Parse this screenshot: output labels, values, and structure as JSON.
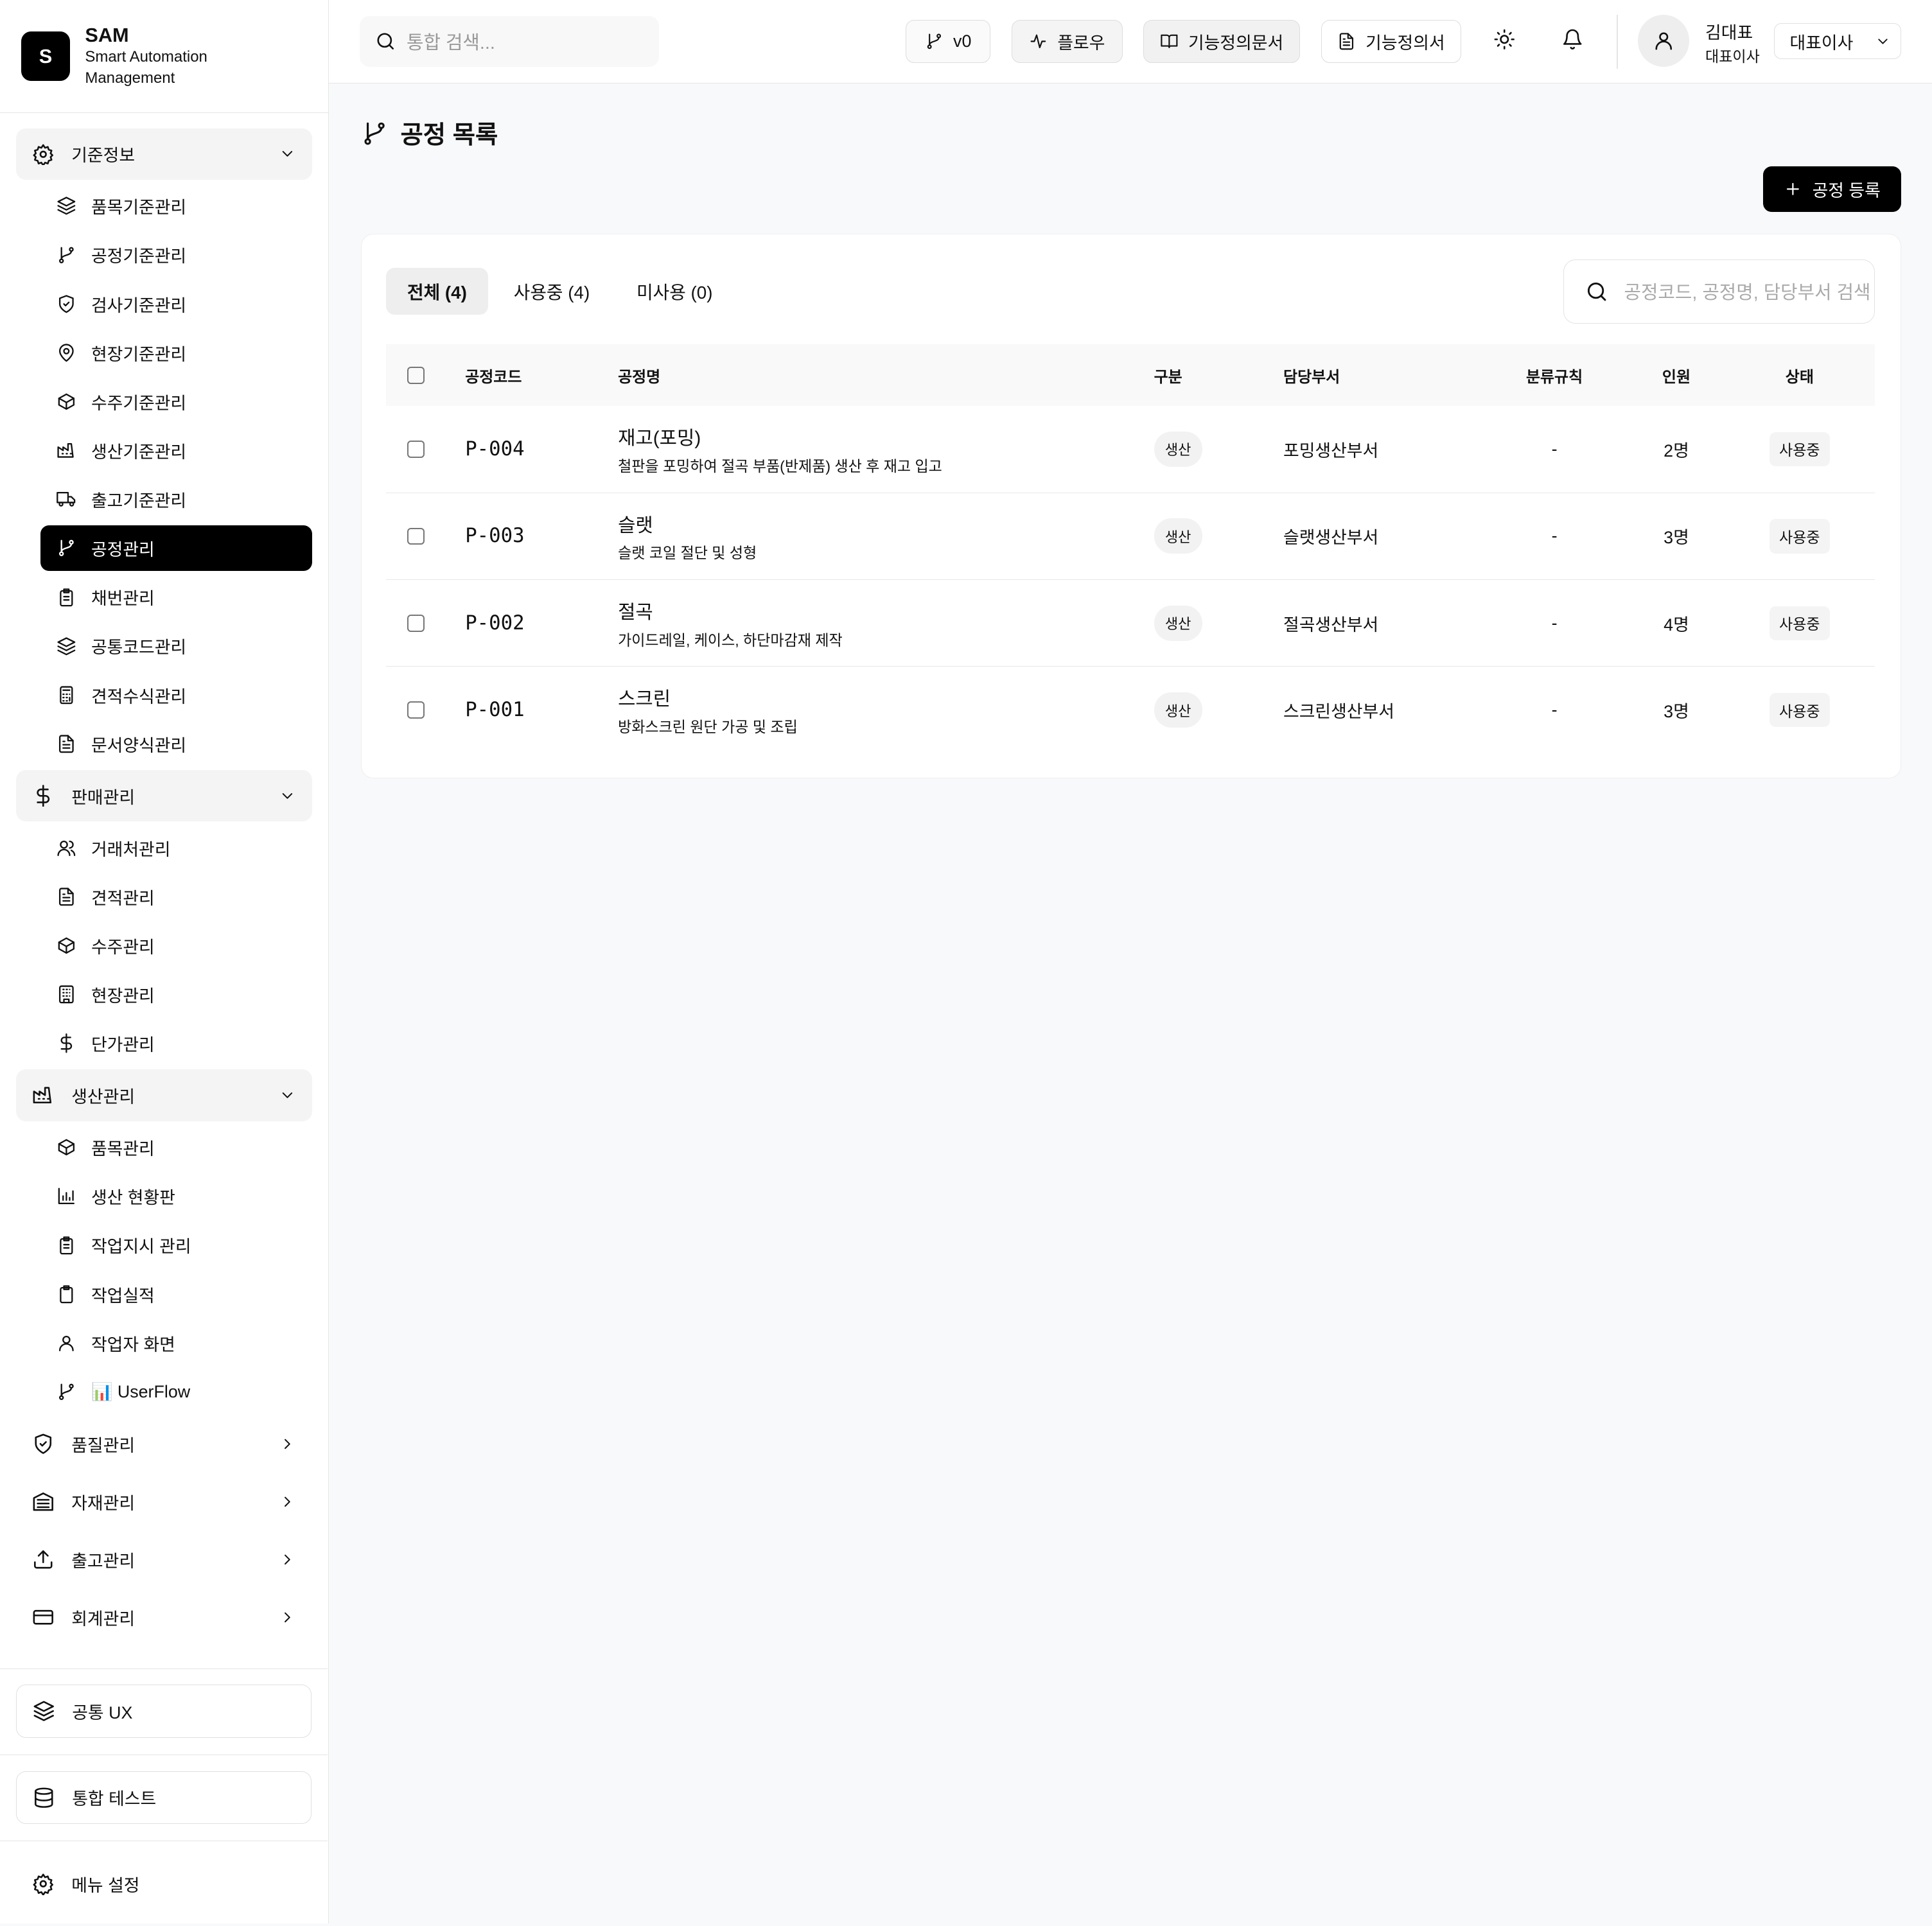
{
  "brand": {
    "logo": "S",
    "title": "SAM",
    "subtitle": "Smart Automation Management"
  },
  "sidebar": {
    "groups": [
      {
        "label": "기준정보",
        "icon": "gear",
        "open": true,
        "items": [
          {
            "label": "품목기준관리",
            "icon": "layers"
          },
          {
            "label": "공정기준관리",
            "icon": "branch"
          },
          {
            "label": "검사기준관리",
            "icon": "shield"
          },
          {
            "label": "현장기준관리",
            "icon": "pin"
          },
          {
            "label": "수주기준관리",
            "icon": "box"
          },
          {
            "label": "생산기준관리",
            "icon": "factory"
          },
          {
            "label": "출고기준관리",
            "icon": "truck"
          },
          {
            "label": "공정관리",
            "icon": "branch",
            "active": true
          },
          {
            "label": "채번관리",
            "icon": "clipboard"
          },
          {
            "label": "공통코드관리",
            "icon": "layers"
          },
          {
            "label": "견적수식관리",
            "icon": "calc"
          },
          {
            "label": "문서양식관리",
            "icon": "file"
          }
        ]
      },
      {
        "label": "판매관리",
        "icon": "dollar",
        "open": true,
        "items": [
          {
            "label": "거래처관리",
            "icon": "users"
          },
          {
            "label": "견적관리",
            "icon": "file"
          },
          {
            "label": "수주관리",
            "icon": "box"
          },
          {
            "label": "현장관리",
            "icon": "building"
          },
          {
            "label": "단가관리",
            "icon": "dollar"
          }
        ]
      },
      {
        "label": "생산관리",
        "icon": "factory",
        "open": true,
        "items": [
          {
            "label": "품목관리",
            "icon": "box"
          },
          {
            "label": "생산 현황판",
            "icon": "chart"
          },
          {
            "label": "작업지시 관리",
            "icon": "clipboard"
          },
          {
            "label": "작업실적",
            "icon": "clip"
          },
          {
            "label": "작업자 화면",
            "icon": "user"
          },
          {
            "label": "📊 UserFlow",
            "icon": "branch"
          }
        ]
      },
      {
        "label": "품질관리",
        "icon": "shield",
        "open": false,
        "items": []
      },
      {
        "label": "자재관리",
        "icon": "warehouse",
        "open": false,
        "items": []
      },
      {
        "label": "출고관리",
        "icon": "upload",
        "open": false,
        "items": []
      },
      {
        "label": "회계관리",
        "icon": "card",
        "open": false,
        "items": []
      }
    ],
    "footer": {
      "common_ux": "공통 UX",
      "integration_test": "통합 테스트",
      "menu_settings": "메뉴 설정"
    }
  },
  "header": {
    "search_placeholder": "통합 검색...",
    "buttons": [
      {
        "label": "v0",
        "icon": "branch"
      },
      {
        "label": "플로우",
        "icon": "activity"
      },
      {
        "label": "기능정의문서",
        "icon": "book"
      },
      {
        "label": "기능정의서",
        "icon": "file"
      }
    ],
    "user": {
      "name": "김대표",
      "role": "대표이사"
    },
    "role_select": "대표이사"
  },
  "page": {
    "title": "공정 목록",
    "add_button": "공정 등록",
    "tabs": [
      {
        "label": "전체 (4)",
        "active": true
      },
      {
        "label": "사용중 (4)"
      },
      {
        "label": "미사용 (0)"
      }
    ],
    "search_placeholder": "공정코드, 공정명, 담당부서 검색",
    "columns": [
      "공정코드",
      "공정명",
      "구분",
      "담당부서",
      "분류규칙",
      "인원",
      "상태"
    ],
    "rows": [
      {
        "code": "P-004",
        "name": "재고(포밍)",
        "desc": "철판을 포밍하여 절곡 부품(반제품) 생산 후 재고 입고",
        "type": "생산",
        "dept": "포밍생산부서",
        "rule": "-",
        "staff": "2명",
        "status": "사용중"
      },
      {
        "code": "P-003",
        "name": "슬랫",
        "desc": "슬랫 코일 절단 및 성형",
        "type": "생산",
        "dept": "슬랫생산부서",
        "rule": "-",
        "staff": "3명",
        "status": "사용중"
      },
      {
        "code": "P-002",
        "name": "절곡",
        "desc": "가이드레일, 케이스, 하단마감재 제작",
        "type": "생산",
        "dept": "절곡생산부서",
        "rule": "-",
        "staff": "4명",
        "status": "사용중"
      },
      {
        "code": "P-001",
        "name": "스크린",
        "desc": "방화스크린 원단 가공 및 조립",
        "type": "생산",
        "dept": "스크린생산부서",
        "rule": "-",
        "staff": "3명",
        "status": "사용중"
      }
    ]
  }
}
